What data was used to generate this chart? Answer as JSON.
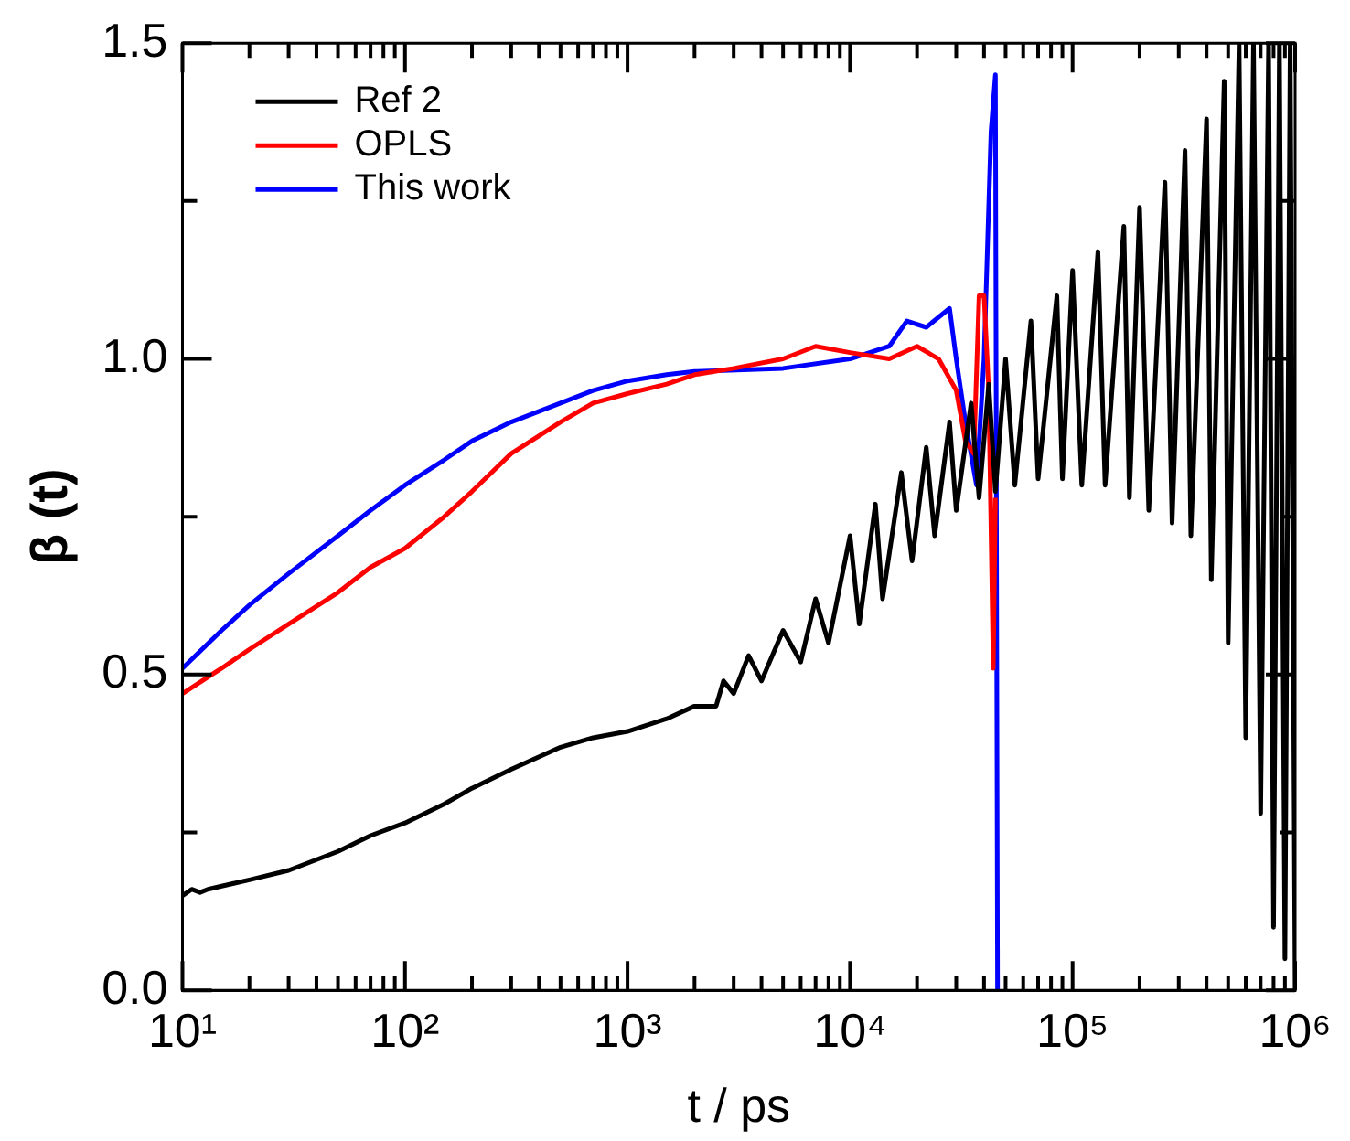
{
  "chart_data": {
    "type": "line",
    "xlabel": "t / ps",
    "ylabel": "β (t)",
    "log": "x",
    "legend": "top left",
    "marker": "none",
    "line_style": "solid",
    "xlim": [
      10,
      1000000
    ],
    "ylim": [
      0,
      1.5
    ],
    "xticks": [
      {
        "value": 10,
        "label": "10¹"
      },
      {
        "value": 20,
        "label": null
      },
      {
        "value": 30,
        "label": null
      },
      {
        "value": 40,
        "label": null
      },
      {
        "value": 50,
        "label": null
      },
      {
        "value": 60,
        "label": null
      },
      {
        "value": 70,
        "label": null
      },
      {
        "value": 80,
        "label": null
      },
      {
        "value": 90,
        "label": null
      },
      {
        "value": 100,
        "label": "10²"
      },
      {
        "value": 200,
        "label": null
      },
      {
        "value": 300,
        "label": null
      },
      {
        "value": 400,
        "label": null
      },
      {
        "value": 500,
        "label": null
      },
      {
        "value": 600,
        "label": null
      },
      {
        "value": 700,
        "label": null
      },
      {
        "value": 800,
        "label": null
      },
      {
        "value": 900,
        "label": null
      },
      {
        "value": 1000,
        "label": "10³"
      },
      {
        "value": 2000,
        "label": null
      },
      {
        "value": 3000,
        "label": null
      },
      {
        "value": 4000,
        "label": null
      },
      {
        "value": 5000,
        "label": null
      },
      {
        "value": 6000,
        "label": null
      },
      {
        "value": 7000,
        "label": null
      },
      {
        "value": 8000,
        "label": null
      },
      {
        "value": 9000,
        "label": null
      },
      {
        "value": 10000,
        "label": "10⁴"
      },
      {
        "value": 20000,
        "label": null
      },
      {
        "value": 30000,
        "label": null
      },
      {
        "value": 40000,
        "label": null
      },
      {
        "value": 50000,
        "label": null
      },
      {
        "value": 60000,
        "label": null
      },
      {
        "value": 70000,
        "label": null
      },
      {
        "value": 80000,
        "label": null
      },
      {
        "value": 90000,
        "label": null
      },
      {
        "value": 100000,
        "label": "10⁵"
      },
      {
        "value": 200000,
        "label": null
      },
      {
        "value": 300000,
        "label": null
      },
      {
        "value": 400000,
        "label": null
      },
      {
        "value": 500000,
        "label": null
      },
      {
        "value": 600000,
        "label": null
      },
      {
        "value": 700000,
        "label": null
      },
      {
        "value": 800000,
        "label": null
      },
      {
        "value": 900000,
        "label": null
      },
      {
        "value": 1000000,
        "label": "10⁶"
      }
    ],
    "yticks": [
      {
        "value": 0,
        "label": "0.0"
      },
      {
        "value": 0.25,
        "label": null
      },
      {
        "value": 0.5,
        "label": "0.5"
      },
      {
        "value": 0.75,
        "label": null
      },
      {
        "value": 1,
        "label": "1.0"
      },
      {
        "value": 1.25,
        "label": null
      },
      {
        "value": 1.5,
        "label": "1.5"
      }
    ],
    "series": [
      {
        "name": "Ref 2",
        "color": "#000000",
        "x": [
          10,
          11,
          12,
          13,
          15,
          20,
          30,
          50,
          70,
          100,
          150,
          200,
          300,
          500,
          700,
          1000,
          1500,
          2000,
          2500,
          2700,
          3000,
          3500,
          4000,
          5000,
          6000,
          7000,
          8000,
          10000,
          11000,
          13000,
          14000,
          17000,
          19000,
          22000,
          24000,
          28000,
          30000,
          35000,
          38000,
          42000,
          45000,
          50000,
          55000,
          65000,
          70000,
          85000,
          90000,
          100000,
          110000,
          130000,
          140000,
          170000,
          180000,
          200000,
          220000,
          260000,
          280000,
          320000,
          340000,
          400000,
          420000,
          480000,
          500000,
          560000,
          600000,
          650000,
          700000,
          760000,
          800000,
          850000,
          900000,
          950000,
          1000000
        ],
        "values": [
          0.15,
          0.16,
          0.155,
          0.16,
          0.165,
          0.175,
          0.19,
          0.22,
          0.245,
          0.265,
          0.295,
          0.32,
          0.35,
          0.385,
          0.4,
          0.41,
          0.43,
          0.45,
          0.45,
          0.49,
          0.47,
          0.53,
          0.49,
          0.57,
          0.52,
          0.62,
          0.55,
          0.72,
          0.58,
          0.77,
          0.62,
          0.82,
          0.68,
          0.86,
          0.72,
          0.9,
          0.76,
          0.93,
          0.78,
          0.96,
          0.79,
          1.0,
          0.8,
          1.06,
          0.81,
          1.1,
          0.81,
          1.14,
          0.8,
          1.17,
          0.8,
          1.21,
          0.78,
          1.24,
          0.76,
          1.28,
          0.74,
          1.33,
          0.72,
          1.38,
          0.65,
          1.44,
          0.55,
          1.5,
          0.4,
          1.5,
          0.28,
          1.5,
          0.1,
          1.5,
          0.05,
          1.5,
          0
        ]
      },
      {
        "name": "OPLS",
        "color": "#ff0000",
        "x": [
          10,
          15,
          20,
          30,
          50,
          70,
          100,
          150,
          200,
          300,
          500,
          700,
          1000,
          1500,
          2000,
          3000,
          5000,
          7000,
          10000,
          15000,
          20000,
          25000,
          30000,
          33000,
          36000,
          38000,
          40000,
          42000,
          44000,
          45000
        ],
        "values": [
          0.47,
          0.51,
          0.54,
          0.58,
          0.63,
          0.67,
          0.7,
          0.75,
          0.79,
          0.85,
          0.9,
          0.93,
          0.945,
          0.96,
          0.975,
          0.985,
          1.0,
          1.02,
          1.01,
          1.0,
          1.02,
          1.0,
          0.95,
          0.87,
          0.85,
          1.1,
          1.1,
          0.95,
          0.51,
          0.78
        ]
      },
      {
        "name": "This work",
        "color": "#0000ff",
        "x": [
          10,
          15,
          20,
          30,
          50,
          70,
          100,
          150,
          200,
          300,
          500,
          700,
          1000,
          1500,
          2000,
          5000,
          10000,
          15000,
          18000,
          22000,
          28000,
          30000,
          33000,
          37000,
          40000,
          43000,
          45000,
          46000
        ],
        "values": [
          0.51,
          0.57,
          0.61,
          0.66,
          0.72,
          0.76,
          0.8,
          0.84,
          0.87,
          0.9,
          0.93,
          0.95,
          0.965,
          0.975,
          0.98,
          0.985,
          1.0,
          1.02,
          1.06,
          1.05,
          1.08,
          1.0,
          0.9,
          0.8,
          1.0,
          1.36,
          1.45,
          0
        ]
      }
    ]
  }
}
